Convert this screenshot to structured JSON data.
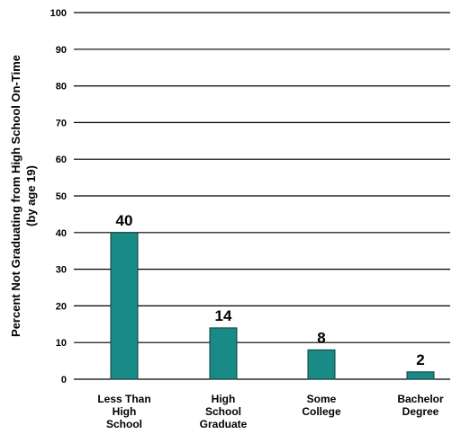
{
  "chart_data": {
    "type": "bar",
    "categories": [
      [
        "Less Than",
        "High",
        "School"
      ],
      [
        "High",
        "School",
        "Graduate"
      ],
      [
        "Some",
        "College"
      ],
      [
        "Bachelor",
        "Degree"
      ]
    ],
    "values": [
      40,
      14,
      8,
      2
    ],
    "data_labels": [
      "40",
      "14",
      "8",
      "2"
    ],
    "title": "",
    "xlabel": "",
    "ylabel": [
      "Percent Not Graduating from High School On-Time",
      "(by age 19)"
    ],
    "ylim": [
      0,
      100
    ],
    "yticks": [
      0,
      10,
      20,
      30,
      40,
      50,
      60,
      70,
      80,
      90,
      100
    ],
    "grid": true,
    "legend": "none",
    "bar_color": "#1a8a87",
    "bar_stroke": "#0b3f3d"
  }
}
